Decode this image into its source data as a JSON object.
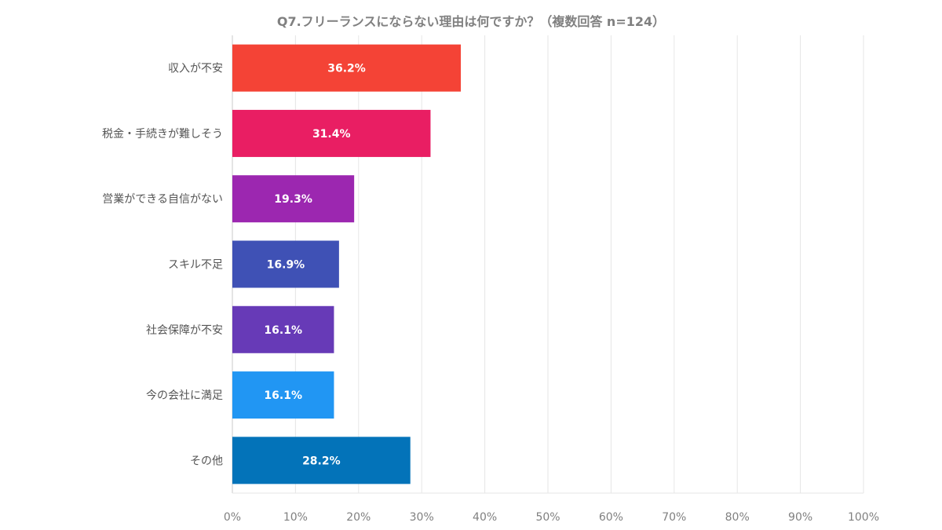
{
  "chart_data": {
    "type": "bar",
    "orientation": "horizontal",
    "title": "Q7.フリーランスにならない理由は何ですか？（複数回答 n=124）",
    "categories": [
      "収入が不安",
      "税金・手続きが難しそう",
      "営業ができる自信がない",
      "スキル不足",
      "社会保障が不安",
      "今の会社に満足",
      "その他"
    ],
    "values": [
      36.2,
      31.4,
      19.3,
      16.9,
      16.1,
      16.1,
      28.2
    ],
    "data_labels": [
      "36.2%",
      "31.4%",
      "19.3%",
      "16.9%",
      "16.1%",
      "16.1%",
      "28.2%"
    ],
    "colors": [
      "#F44336",
      "#E91E63",
      "#9C27B0",
      "#3F51B5",
      "#673AB7",
      "#2196F3",
      "#0373B9"
    ],
    "xlim": [
      0,
      100
    ],
    "x_ticks": [
      "0%",
      "10%",
      "20%",
      "30%",
      "40%",
      "50%",
      "60%",
      "70%",
      "80%",
      "90%",
      "100%"
    ],
    "grid": true,
    "xlabel": "",
    "ylabel": ""
  }
}
